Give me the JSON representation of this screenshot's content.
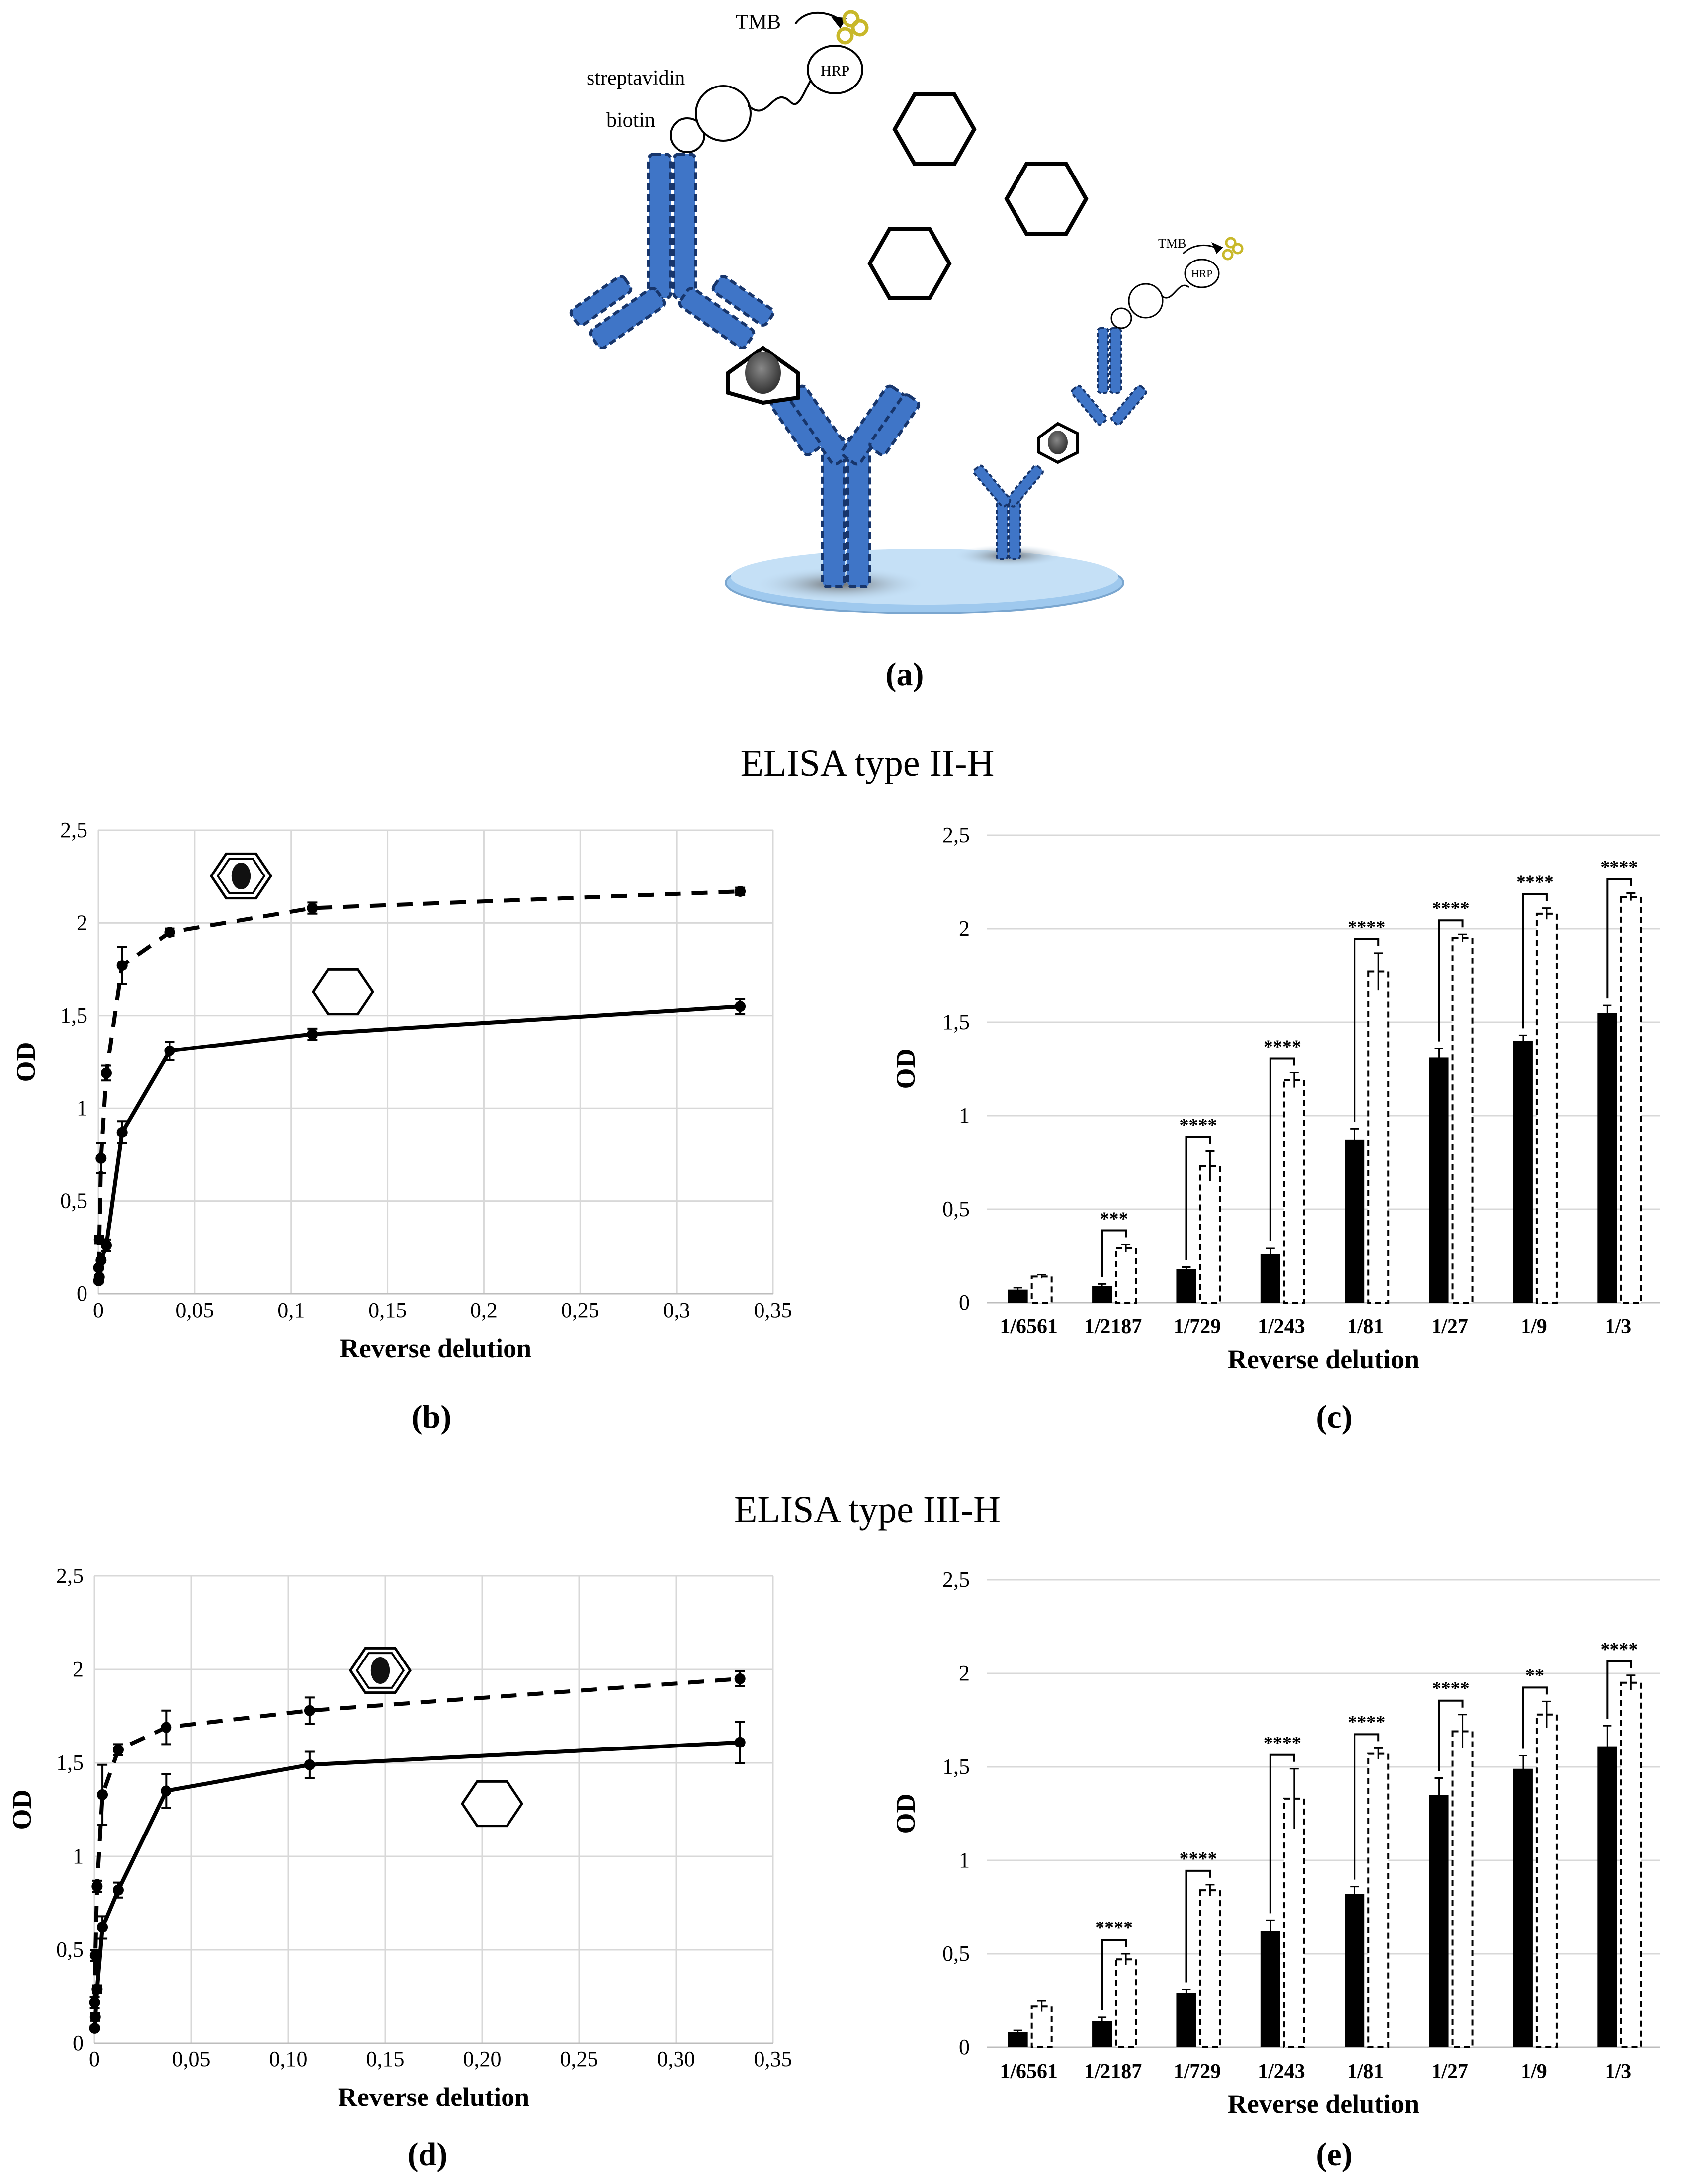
{
  "panel_a": {
    "label": "(a)",
    "texts": {
      "tmb": "TMB",
      "streptavidin": "streptavidin",
      "biotin": "biotin",
      "hrp": "HRP",
      "tmb_small": "TMB",
      "hrp_small": "HRP"
    }
  },
  "section_titles": [
    "ELISA type II-H",
    "ELISA type III-H"
  ],
  "colors": {
    "antibody": "#3f75c7",
    "antibody_dark": "#17356b",
    "plate": "#bcd9f2",
    "tmb": "#c8b82a",
    "bar_solid": "#000000"
  },
  "chart_data": [
    {
      "panel": "(b)",
      "type": "line",
      "x": [
        0.000152,
        0.000457,
        0.00137,
        0.00412,
        0.0123,
        0.037,
        0.111,
        0.333
      ],
      "xticks": [
        "0",
        "0,05",
        "0,1",
        "0,15",
        "0,2",
        "0,25",
        "0,3",
        "0,35"
      ],
      "yticks": [
        "0",
        "0,5",
        "1",
        "1,5",
        "2",
        "2,5"
      ],
      "xlim": [
        0,
        0.35
      ],
      "ylim": [
        0,
        2.5
      ],
      "xlabel": "Reverse delution",
      "ylabel": "OD",
      "grid": true,
      "series": [
        {
          "style": "solid",
          "icon": "empty-hexagon",
          "values": [
            0.07,
            0.09,
            0.18,
            0.26,
            0.87,
            1.31,
            1.4,
            1.55
          ],
          "errors": [
            0.01,
            0.01,
            0.01,
            0.03,
            0.06,
            0.05,
            0.03,
            0.04
          ]
        },
        {
          "style": "dashed",
          "icon": "filled-hexagon",
          "values": [
            0.14,
            0.29,
            0.73,
            1.19,
            1.77,
            1.95,
            2.08,
            2.17
          ],
          "errors": [
            0.01,
            0.02,
            0.08,
            0.04,
            0.1,
            0.02,
            0.03,
            0.02
          ]
        }
      ]
    },
    {
      "panel": "(c)",
      "type": "bar",
      "categories": [
        "1/6561",
        "1/2187",
        "1/729",
        "1/243",
        "1/81",
        "1/27",
        "1/9",
        "1/3"
      ],
      "yticks": [
        "0",
        "0,5",
        "1",
        "1,5",
        "2",
        "2,5"
      ],
      "ylim": [
        0,
        2.5
      ],
      "xlabel": "Reverse delution",
      "ylabel": "OD",
      "grid": true,
      "series": [
        {
          "style": "solid",
          "values": [
            0.07,
            0.09,
            0.18,
            0.26,
            0.87,
            1.31,
            1.4,
            1.55
          ],
          "errors": [
            0.01,
            0.01,
            0.01,
            0.03,
            0.06,
            0.05,
            0.03,
            0.04
          ]
        },
        {
          "style": "dashed",
          "values": [
            0.14,
            0.29,
            0.73,
            1.19,
            1.77,
            1.95,
            2.08,
            2.17
          ],
          "errors": [
            0.01,
            0.02,
            0.08,
            0.04,
            0.1,
            0.02,
            0.03,
            0.02
          ]
        }
      ],
      "significance": [
        "",
        "***",
        "****",
        "****",
        "****",
        "****",
        "****",
        "****"
      ]
    },
    {
      "panel": "(d)",
      "type": "line",
      "x": [
        0.000152,
        0.000457,
        0.00137,
        0.00412,
        0.0123,
        0.037,
        0.111,
        0.333
      ],
      "xticks": [
        "0",
        "0,05",
        "0,10",
        "0,15",
        "0,20",
        "0,25",
        "0,30",
        "0,35"
      ],
      "yticks": [
        "0",
        "0,5",
        "1",
        "1,5",
        "2",
        "2,5"
      ],
      "xlim": [
        0,
        0.35
      ],
      "ylim": [
        0,
        2.5
      ],
      "xlabel": "Reverse delution",
      "ylabel": "OD",
      "grid": true,
      "series": [
        {
          "style": "solid",
          "icon": "empty-hexagon",
          "values": [
            0.08,
            0.14,
            0.29,
            0.62,
            0.82,
            1.35,
            1.49,
            1.61
          ],
          "errors": [
            0.01,
            0.02,
            0.02,
            0.06,
            0.04,
            0.09,
            0.07,
            0.11
          ]
        },
        {
          "style": "dashed",
          "icon": "filled-hexagon",
          "values": [
            0.22,
            0.47,
            0.84,
            1.33,
            1.57,
            1.69,
            1.78,
            1.95
          ],
          "errors": [
            0.03,
            0.03,
            0.03,
            0.16,
            0.03,
            0.09,
            0.07,
            0.04
          ]
        }
      ]
    },
    {
      "panel": "(e)",
      "type": "bar",
      "categories": [
        "1/6561",
        "1/2187",
        "1/729",
        "1/243",
        "1/81",
        "1/27",
        "1/9",
        "1/3"
      ],
      "yticks": [
        "0",
        "0,5",
        "1",
        "1,5",
        "2",
        "2,5"
      ],
      "ylim": [
        0,
        2.5
      ],
      "xlabel": "Reverse delution",
      "ylabel": "OD",
      "grid": true,
      "series": [
        {
          "style": "solid",
          "values": [
            0.08,
            0.14,
            0.29,
            0.62,
            0.82,
            1.35,
            1.49,
            1.61
          ],
          "errors": [
            0.01,
            0.02,
            0.02,
            0.06,
            0.04,
            0.09,
            0.07,
            0.11
          ]
        },
        {
          "style": "dashed",
          "values": [
            0.22,
            0.47,
            0.84,
            1.33,
            1.57,
            1.69,
            1.78,
            1.95
          ],
          "errors": [
            0.03,
            0.03,
            0.03,
            0.16,
            0.03,
            0.09,
            0.07,
            0.04
          ]
        }
      ],
      "significance": [
        "",
        "****",
        "****",
        "****",
        "****",
        "****",
        "**",
        "****"
      ]
    }
  ]
}
